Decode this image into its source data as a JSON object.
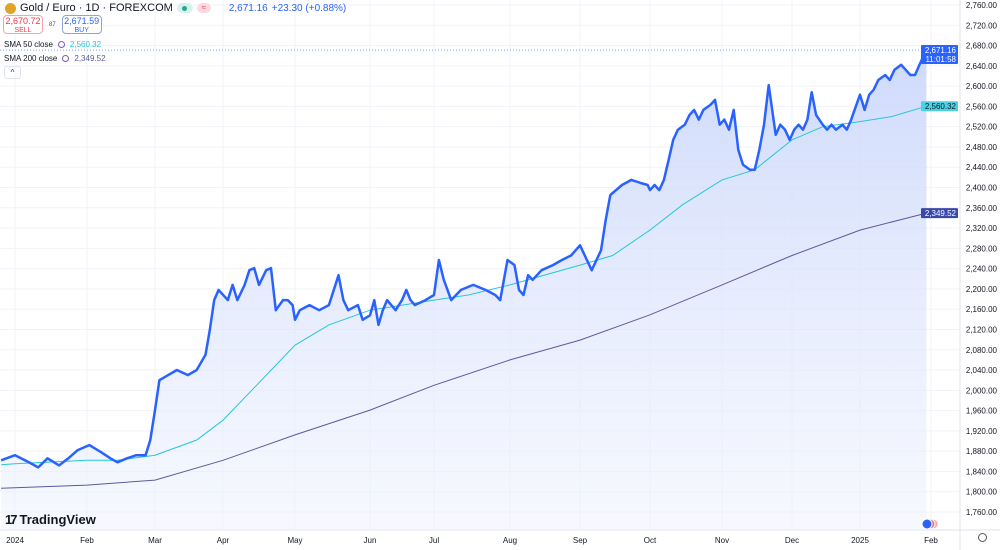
{
  "header": {
    "symbol_title": "Gold / Euro · 1D · FOREXCOM",
    "last": "2,671.16",
    "change": "+23.30 (+0.88%)",
    "sell_price": "2,670.72",
    "sell_label": "SELL",
    "spread": "87",
    "buy_price": "2,671.59",
    "buy_label": "BUY",
    "market_status_icon": "market-open-dot-icon",
    "data_icon": "wave-icon"
  },
  "indicators": [
    {
      "label": "SMA 50 close",
      "value": "2,560.32",
      "color": "#26c6da"
    },
    {
      "label": "SMA 200 close",
      "value": "2,349.52",
      "color": "#5b5b9e"
    }
  ],
  "price_badge": {
    "value": "2,671.16",
    "countdown": "11:01:58",
    "color": "#2962ff"
  },
  "sma50_badge": "2,560.32",
  "sma200_badge": "2,349.52",
  "brand": "TradingView",
  "colors": {
    "main": "#2962ff",
    "sma50": "#26c6da",
    "sma200": "#5b5b9e",
    "fill": "#dbe4ff"
  },
  "chart_data": {
    "type": "area",
    "yticks": [
      1760,
      1800,
      1840,
      1880,
      1920,
      1960,
      2000,
      2040,
      2080,
      2120,
      2160,
      2200,
      2240,
      2280,
      2320,
      2360,
      2400,
      2440,
      2480,
      2520,
      2560,
      2600,
      2640,
      2680,
      2720,
      2760
    ],
    "ylim": [
      1750,
      2775
    ],
    "xticks": [
      {
        "date": "2024-01-01",
        "label": "2024"
      },
      {
        "date": "2024-02-01",
        "label": "Feb"
      },
      {
        "date": "2024-03-01",
        "label": "Mar"
      },
      {
        "date": "2024-04-01",
        "label": "Apr"
      },
      {
        "date": "2024-05-01",
        "label": "May"
      },
      {
        "date": "2024-06-01",
        "label": "Jun"
      },
      {
        "date": "2024-07-01",
        "label": "Jul"
      },
      {
        "date": "2024-08-01",
        "label": "Aug"
      },
      {
        "date": "2024-09-01",
        "label": "Sep"
      },
      {
        "date": "2024-10-01",
        "label": "Oct"
      },
      {
        "date": "2024-11-01",
        "label": "Nov"
      },
      {
        "date": "2024-12-01",
        "label": "Dec"
      },
      {
        "date": "2025-01-01",
        "label": "2025"
      },
      {
        "date": "2025-02-01",
        "label": "Feb"
      }
    ],
    "grid": true,
    "series": [
      {
        "key": "price",
        "points": [
          [
            "2023-12-26",
            1862
          ],
          [
            "2024-01-01",
            1872
          ],
          [
            "2024-01-07",
            1858
          ],
          [
            "2024-01-11",
            1848
          ],
          [
            "2024-01-15",
            1866
          ],
          [
            "2024-01-20",
            1852
          ],
          [
            "2024-01-24",
            1866
          ],
          [
            "2024-01-28",
            1882
          ],
          [
            "2024-02-02",
            1892
          ],
          [
            "2024-02-07",
            1878
          ],
          [
            "2024-02-11",
            1866
          ],
          [
            "2024-02-14",
            1858
          ],
          [
            "2024-02-18",
            1866
          ],
          [
            "2024-02-22",
            1872
          ],
          [
            "2024-02-26",
            1872
          ],
          [
            "2024-02-28",
            1902
          ],
          [
            "2024-03-01",
            1961
          ],
          [
            "2024-03-03",
            2020
          ],
          [
            "2024-03-07",
            2030
          ],
          [
            "2024-03-11",
            2040
          ],
          [
            "2024-03-16",
            2030
          ],
          [
            "2024-03-20",
            2040
          ],
          [
            "2024-03-24",
            2070
          ],
          [
            "2024-03-26",
            2119
          ],
          [
            "2024-03-28",
            2178
          ],
          [
            "2024-03-30",
            2198
          ],
          [
            "2024-04-03",
            2178
          ],
          [
            "2024-04-05",
            2208
          ],
          [
            "2024-04-07",
            2178
          ],
          [
            "2024-04-10",
            2208
          ],
          [
            "2024-04-12",
            2237
          ],
          [
            "2024-04-14",
            2241
          ],
          [
            "2024-04-16",
            2208
          ],
          [
            "2024-04-19",
            2237
          ],
          [
            "2024-04-21",
            2241
          ],
          [
            "2024-04-23",
            2158
          ],
          [
            "2024-04-26",
            2178
          ],
          [
            "2024-04-28",
            2178
          ],
          [
            "2024-04-30",
            2168
          ],
          [
            "2024-05-01",
            2139
          ],
          [
            "2024-05-03",
            2158
          ],
          [
            "2024-05-07",
            2168
          ],
          [
            "2024-05-11",
            2158
          ],
          [
            "2024-05-15",
            2168
          ],
          [
            "2024-05-19",
            2227
          ],
          [
            "2024-05-21",
            2178
          ],
          [
            "2024-05-23",
            2158
          ],
          [
            "2024-05-27",
            2168
          ],
          [
            "2024-05-29",
            2139
          ],
          [
            "2024-06-01",
            2148
          ],
          [
            "2024-06-03",
            2178
          ],
          [
            "2024-06-05",
            2129
          ],
          [
            "2024-06-07",
            2158
          ],
          [
            "2024-06-09",
            2178
          ],
          [
            "2024-06-11",
            2168
          ],
          [
            "2024-06-13",
            2158
          ],
          [
            "2024-06-16",
            2178
          ],
          [
            "2024-06-18",
            2198
          ],
          [
            "2024-06-20",
            2178
          ],
          [
            "2024-06-22",
            2168
          ],
          [
            "2024-06-27",
            2178
          ],
          [
            "2024-07-01",
            2188
          ],
          [
            "2024-07-03",
            2257
          ],
          [
            "2024-07-05",
            2218
          ],
          [
            "2024-07-08",
            2178
          ],
          [
            "2024-07-12",
            2198
          ],
          [
            "2024-07-17",
            2208
          ],
          [
            "2024-07-22",
            2198
          ],
          [
            "2024-07-26",
            2188
          ],
          [
            "2024-07-28",
            2178
          ],
          [
            "2024-07-31",
            2257
          ],
          [
            "2024-08-03",
            2247
          ],
          [
            "2024-08-05",
            2198
          ],
          [
            "2024-08-07",
            2188
          ],
          [
            "2024-08-09",
            2227
          ],
          [
            "2024-08-11",
            2218
          ],
          [
            "2024-08-15",
            2237
          ],
          [
            "2024-08-20",
            2247
          ],
          [
            "2024-08-24",
            2257
          ],
          [
            "2024-08-28",
            2266
          ],
          [
            "2024-08-30",
            2276
          ],
          [
            "2024-09-01",
            2286
          ],
          [
            "2024-09-06",
            2237
          ],
          [
            "2024-09-10",
            2276
          ],
          [
            "2024-09-12",
            2336
          ],
          [
            "2024-09-14",
            2385
          ],
          [
            "2024-09-19",
            2405
          ],
          [
            "2024-09-23",
            2415
          ],
          [
            "2024-09-27",
            2409
          ],
          [
            "2024-09-30",
            2405
          ],
          [
            "2024-10-01",
            2395
          ],
          [
            "2024-10-03",
            2405
          ],
          [
            "2024-10-05",
            2395
          ],
          [
            "2024-10-07",
            2415
          ],
          [
            "2024-10-09",
            2454
          ],
          [
            "2024-10-11",
            2494
          ],
          [
            "2024-10-13",
            2514
          ],
          [
            "2024-10-16",
            2524
          ],
          [
            "2024-10-18",
            2543
          ],
          [
            "2024-10-20",
            2553
          ],
          [
            "2024-10-22",
            2534
          ],
          [
            "2024-10-24",
            2553
          ],
          [
            "2024-10-27",
            2563
          ],
          [
            "2024-10-29",
            2573
          ],
          [
            "2024-10-31",
            2524
          ],
          [
            "2024-11-02",
            2534
          ],
          [
            "2024-11-04",
            2514
          ],
          [
            "2024-11-06",
            2553
          ],
          [
            "2024-11-08",
            2474
          ],
          [
            "2024-11-10",
            2445
          ],
          [
            "2024-11-13",
            2435
          ],
          [
            "2024-11-15",
            2435
          ],
          [
            "2024-11-17",
            2474
          ],
          [
            "2024-11-19",
            2524
          ],
          [
            "2024-11-21",
            2602
          ],
          [
            "2024-11-24",
            2504
          ],
          [
            "2024-11-26",
            2524
          ],
          [
            "2024-11-28",
            2514
          ],
          [
            "2024-11-30",
            2494
          ],
          [
            "2024-12-02",
            2514
          ],
          [
            "2024-12-04",
            2524
          ],
          [
            "2024-12-06",
            2514
          ],
          [
            "2024-12-08",
            2534
          ],
          [
            "2024-12-10",
            2588
          ],
          [
            "2024-12-12",
            2543
          ],
          [
            "2024-12-15",
            2524
          ],
          [
            "2024-12-17",
            2514
          ],
          [
            "2024-12-19",
            2524
          ],
          [
            "2024-12-21",
            2514
          ],
          [
            "2024-12-24",
            2524
          ],
          [
            "2024-12-26",
            2514
          ],
          [
            "2024-12-28",
            2534
          ],
          [
            "2025-01-01",
            2583
          ],
          [
            "2025-01-03",
            2553
          ],
          [
            "2025-01-05",
            2583
          ],
          [
            "2025-01-07",
            2593
          ],
          [
            "2025-01-09",
            2612
          ],
          [
            "2025-01-12",
            2622
          ],
          [
            "2025-01-14",
            2612
          ],
          [
            "2025-01-16",
            2632
          ],
          [
            "2025-01-19",
            2642
          ],
          [
            "2025-01-21",
            2632
          ],
          [
            "2025-01-23",
            2622
          ],
          [
            "2025-01-25",
            2622
          ],
          [
            "2025-01-27",
            2642
          ],
          [
            "2025-01-29",
            2662
          ],
          [
            "2025-01-30",
            2671.16
          ]
        ]
      },
      {
        "key": "sma50",
        "name": "SMA 50 close",
        "points": [
          [
            "2023-12-26",
            1853
          ],
          [
            "2024-01-01",
            1855
          ],
          [
            "2024-02-01",
            1862
          ],
          [
            "2024-02-14",
            1862
          ],
          [
            "2024-03-01",
            1872
          ],
          [
            "2024-03-20",
            1902
          ],
          [
            "2024-04-01",
            1941
          ],
          [
            "2024-04-15",
            2010
          ],
          [
            "2024-05-01",
            2089
          ],
          [
            "2024-05-15",
            2129
          ],
          [
            "2024-06-01",
            2158
          ],
          [
            "2024-07-01",
            2178
          ],
          [
            "2024-07-15",
            2188
          ],
          [
            "2024-08-01",
            2208
          ],
          [
            "2024-09-01",
            2247
          ],
          [
            "2024-09-15",
            2266
          ],
          [
            "2024-10-01",
            2316
          ],
          [
            "2024-10-15",
            2366
          ],
          [
            "2024-11-01",
            2415
          ],
          [
            "2024-11-15",
            2435
          ],
          [
            "2024-12-01",
            2494
          ],
          [
            "2024-12-15",
            2520
          ],
          [
            "2025-01-01",
            2530
          ],
          [
            "2025-01-15",
            2540
          ],
          [
            "2025-01-30",
            2560.32
          ]
        ]
      },
      {
        "key": "sma200",
        "name": "SMA 200 close",
        "points": [
          [
            "2023-12-26",
            1807
          ],
          [
            "2024-02-01",
            1813
          ],
          [
            "2024-03-01",
            1823
          ],
          [
            "2024-04-01",
            1862
          ],
          [
            "2024-05-01",
            1912
          ],
          [
            "2024-06-01",
            1961
          ],
          [
            "2024-07-01",
            2010
          ],
          [
            "2024-08-01",
            2060
          ],
          [
            "2024-09-01",
            2099
          ],
          [
            "2024-10-01",
            2149
          ],
          [
            "2024-11-01",
            2208
          ],
          [
            "2024-12-01",
            2266
          ],
          [
            "2025-01-01",
            2316
          ],
          [
            "2025-01-30",
            2349.52
          ]
        ]
      }
    ]
  }
}
